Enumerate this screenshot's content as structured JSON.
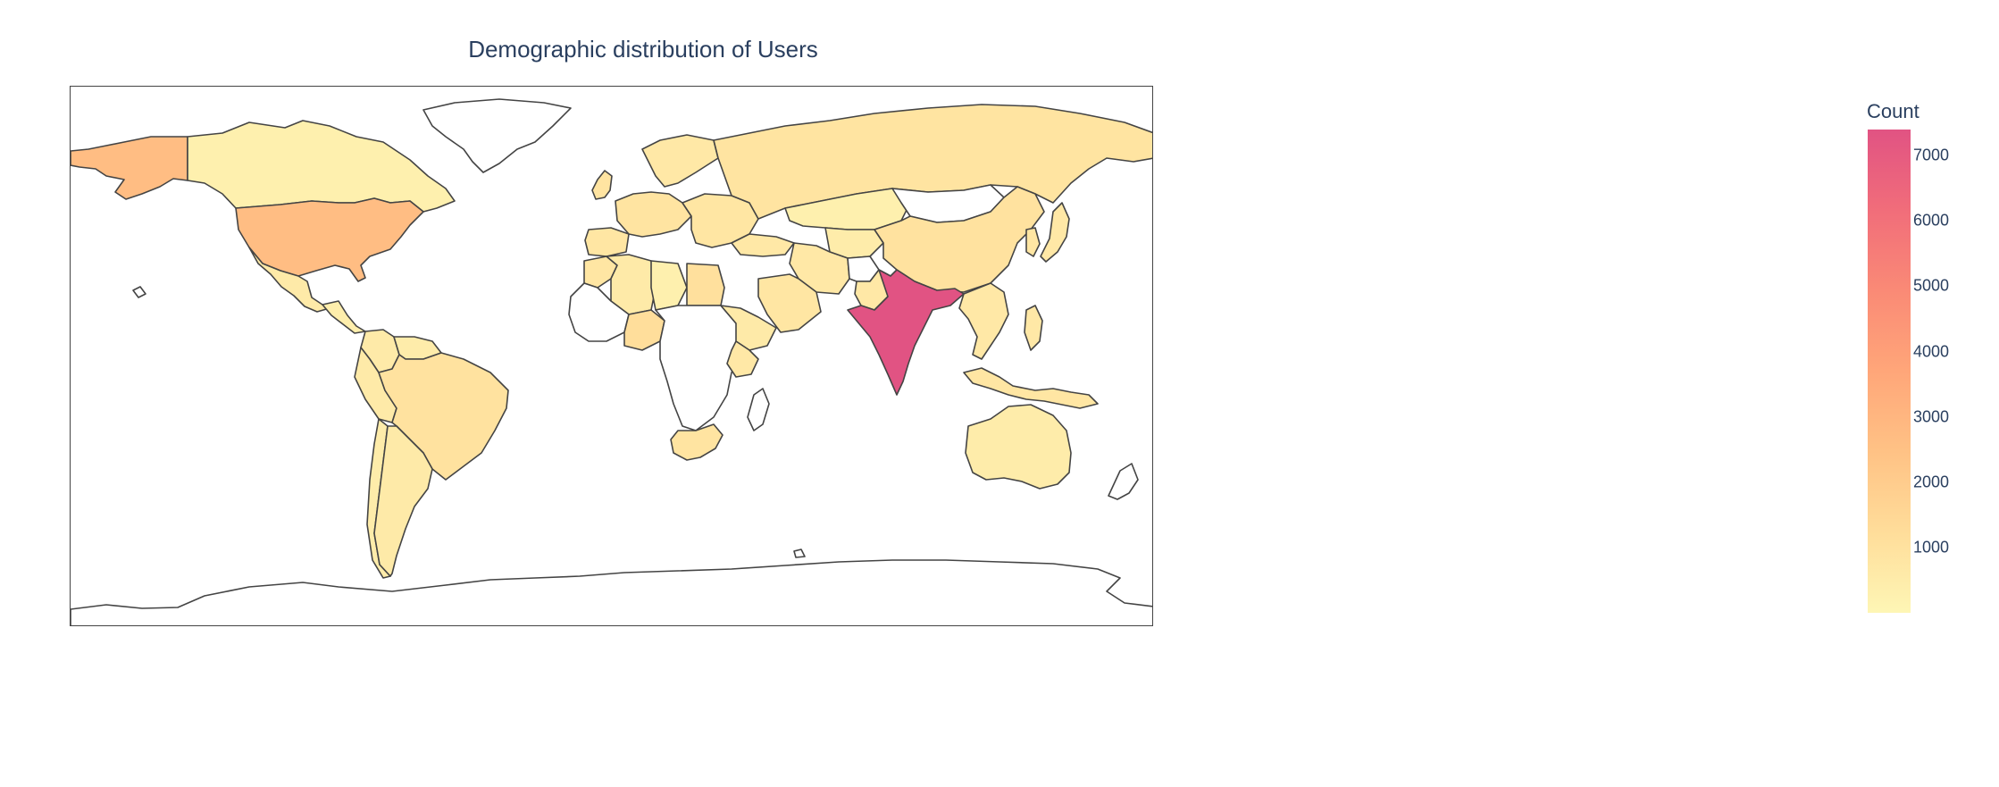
{
  "chart_data": {
    "type": "choropleth",
    "title": "Demographic distribution of Users",
    "colorbar": {
      "title": "Count",
      "range": [
        0,
        7400
      ],
      "ticks": [
        1000,
        2000,
        3000,
        4000,
        5000,
        6000,
        7000
      ],
      "tick_labels": [
        "1000",
        "2000",
        "3000",
        "4000",
        "5000",
        "6000",
        "7000"
      ],
      "colorscale": [
        "#fef6b5",
        "#ffdd9a",
        "#ffc285",
        "#ffa679",
        "#fa8a76",
        "#f16d7a",
        "#e15383"
      ]
    },
    "regions": [
      {
        "id": "canada",
        "value": 300
      },
      {
        "id": "usa",
        "value": 2700
      },
      {
        "id": "alaska",
        "value": 2700
      },
      {
        "id": "mexico",
        "value": 600
      },
      {
        "id": "central-america",
        "value": 400
      },
      {
        "id": "greenland",
        "value": null
      },
      {
        "id": "colombia",
        "value": 600
      },
      {
        "id": "venezuela",
        "value": 500
      },
      {
        "id": "brazil",
        "value": 1000
      },
      {
        "id": "peru",
        "value": 600
      },
      {
        "id": "argentina",
        "value": 600
      },
      {
        "id": "chile",
        "value": 500
      },
      {
        "id": "uk",
        "value": 900
      },
      {
        "id": "western-europe",
        "value": 900
      },
      {
        "id": "scandinavia",
        "value": 700
      },
      {
        "id": "iberia",
        "value": 800
      },
      {
        "id": "eastern-europe",
        "value": 800
      },
      {
        "id": "russia",
        "value": 900
      },
      {
        "id": "kazakhstan",
        "value": 300
      },
      {
        "id": "central-asia",
        "value": 500
      },
      {
        "id": "mongolia",
        "value": null
      },
      {
        "id": "china",
        "value": 1000
      },
      {
        "id": "japan",
        "value": 700
      },
      {
        "id": "korea",
        "value": 800
      },
      {
        "id": "turkey",
        "value": 700
      },
      {
        "id": "iran",
        "value": 700
      },
      {
        "id": "saudi-arabia",
        "value": 800
      },
      {
        "id": "pakistan",
        "value": 700
      },
      {
        "id": "afghanistan",
        "value": null
      },
      {
        "id": "india",
        "value": 7400
      },
      {
        "id": "southeast-asia",
        "value": 700
      },
      {
        "id": "indonesia",
        "value": 800
      },
      {
        "id": "philippines",
        "value": 700
      },
      {
        "id": "australia",
        "value": 500
      },
      {
        "id": "new-zealand",
        "value": null
      },
      {
        "id": "morocco",
        "value": 800
      },
      {
        "id": "algeria",
        "value": 600
      },
      {
        "id": "libya",
        "value": 300
      },
      {
        "id": "egypt",
        "value": 1100
      },
      {
        "id": "west-africa",
        "value": null
      },
      {
        "id": "nigeria",
        "value": 1200
      },
      {
        "id": "central-africa",
        "value": null
      },
      {
        "id": "ethiopia",
        "value": 600
      },
      {
        "id": "kenya",
        "value": 700
      },
      {
        "id": "south-africa",
        "value": 900
      },
      {
        "id": "madagascar",
        "value": null
      },
      {
        "id": "antarctica",
        "value": null
      }
    ]
  }
}
